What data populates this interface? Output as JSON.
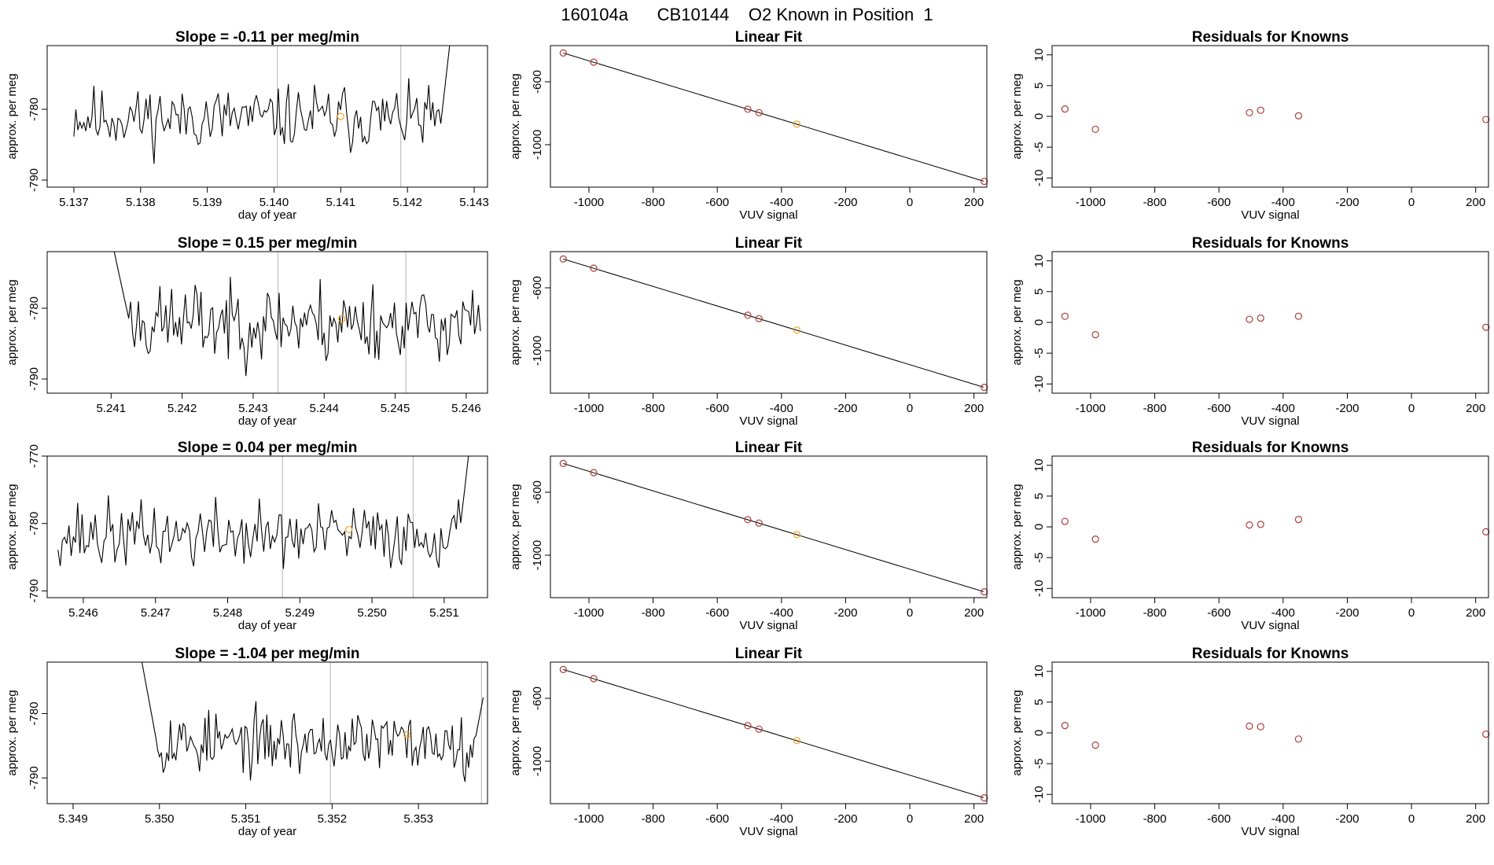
{
  "page": {
    "title": "160104a      CB10144    O2 Known in Position  1"
  },
  "colors": {
    "axis": "#000000",
    "trace": "#000000",
    "vline": "#bfbfbf",
    "fit_point": "#b03a3a",
    "unknown_point": "#f0a020",
    "fit_line": "#000000"
  },
  "chart_data": [
    {
      "type": "line",
      "row": 0,
      "title": "Slope =  -0.11  per meg/min",
      "xlabel": "day of year",
      "ylabel": "approx. per meg",
      "xlim": [
        5.1366,
        5.1432
      ],
      "ylim": [
        -791,
        -771
      ],
      "xticks": [
        5.137,
        5.138,
        5.139,
        5.14,
        5.141,
        5.142,
        5.143
      ],
      "xtick_labels": [
        "5.137",
        "5.138",
        "5.139",
        "5.140",
        "5.141",
        "5.142",
        "5.143"
      ],
      "yticks": [
        -780,
        -790
      ],
      "ytick_labels": [
        "-780",
        "-790"
      ],
      "trace_start": 5.137,
      "trace_end": 5.14268,
      "seed": 11,
      "mean": -781.2,
      "amp": 2.2,
      "tail": "up",
      "vlines": [
        5.14005,
        5.1419
      ],
      "marker": {
        "x": 5.141,
        "y": -781.0
      }
    },
    {
      "type": "line",
      "row": 1,
      "title": "Slope =  0.15  per meg/min",
      "xlabel": "day of year",
      "ylabel": "approx. per meg",
      "xlim": [
        5.2401,
        5.2463
      ],
      "ylim": [
        -792,
        -772
      ],
      "xticks": [
        5.241,
        5.242,
        5.243,
        5.244,
        5.245,
        5.246
      ],
      "xtick_labels": [
        "5.241",
        "5.242",
        "5.243",
        "5.244",
        "5.245",
        "5.246"
      ],
      "yticks": [
        -780,
        -790
      ],
      "ytick_labels": [
        "-780",
        "-790"
      ],
      "trace_start": 5.241,
      "trace_end": 5.2462,
      "seed": 23,
      "mean": -782.0,
      "amp": 2.8,
      "tail": "head-high",
      "vlines": [
        5.24335,
        5.24515
      ],
      "marker": {
        "x": 5.24425,
        "y": -781.5
      }
    },
    {
      "type": "line",
      "row": 2,
      "title": "Slope =  0.04  per meg/min",
      "xlabel": "day of year",
      "ylabel": "approx. per meg",
      "xlim": [
        5.2455,
        5.2516
      ],
      "ylim": [
        -791,
        -770
      ],
      "xticks": [
        5.246,
        5.247,
        5.248,
        5.249,
        5.25,
        5.251
      ],
      "xtick_labels": [
        "5.246",
        "5.247",
        "5.248",
        "5.249",
        "5.250",
        "5.251"
      ],
      "yticks": [
        -770,
        -780,
        -790
      ],
      "ytick_labels": [
        "-770",
        "-780",
        "-790"
      ],
      "trace_start": 5.24565,
      "trace_end": 5.25138,
      "seed": 37,
      "mean": -781.8,
      "amp": 2.4,
      "tail": "up",
      "vlines": [
        5.24876,
        5.25057
      ],
      "marker": {
        "x": 5.24968,
        "y": -780.9
      }
    },
    {
      "type": "line",
      "row": 3,
      "title": "Slope =  -1.04  per meg/min",
      "xlabel": "day of year",
      "ylabel": "approx. per meg",
      "xlim": [
        5.3487,
        5.3538
      ],
      "ylim": [
        -794,
        -772
      ],
      "xticks": [
        5.349,
        5.35,
        5.351,
        5.352,
        5.353
      ],
      "xtick_labels": [
        "5.349",
        "5.350",
        "5.351",
        "5.352",
        "5.353"
      ],
      "yticks": [
        -780,
        -790
      ],
      "ytick_labels": [
        "-780",
        "-790"
      ],
      "trace_start": 5.34977,
      "trace_end": 5.35375,
      "seed": 53,
      "mean": -784.5,
      "amp": 2.4,
      "tail": "head-high-end-up",
      "vlines": [
        5.35198,
        5.35373
      ],
      "marker": {
        "x": 5.35287,
        "y": -783.3
      }
    },
    {
      "type": "scatter",
      "row": 0,
      "title": "Linear Fit",
      "xlabel": "VUV signal",
      "ylabel": "approx. per meg",
      "xlim": [
        -1120,
        240
      ],
      "ylim": [
        -1270,
        -370
      ],
      "xticks": [
        -1000,
        -800,
        -600,
        -400,
        -200,
        0,
        200
      ],
      "xtick_labels": [
        "-1000",
        "-800",
        "-600",
        "-400",
        "-200",
        "0",
        "200"
      ],
      "yticks": [
        -600,
        -1000
      ],
      "ytick_labels": [
        "-600",
        "-1000"
      ],
      "fit_line": {
        "x": [
          -1080,
          230
        ],
        "y": [
          -417,
          -1232
        ]
      },
      "points": [
        {
          "x": -1080,
          "y": -417
        },
        {
          "x": -985,
          "y": -475
        },
        {
          "x": -505,
          "y": -774
        },
        {
          "x": -470,
          "y": -796
        },
        {
          "x": -352,
          "y": -869,
          "role": "unknown"
        },
        {
          "x": 232,
          "y": -1233
        }
      ]
    },
    {
      "type": "scatter",
      "row": 1,
      "title": "Linear Fit",
      "xlabel": "VUV signal",
      "ylabel": "approx. per meg",
      "xlim": [
        -1120,
        240
      ],
      "ylim": [
        -1270,
        -370
      ],
      "xticks": [
        -1000,
        -800,
        -600,
        -400,
        -200,
        0,
        200
      ],
      "xtick_labels": [
        "-1000",
        "-800",
        "-600",
        "-400",
        "-200",
        "0",
        "200"
      ],
      "yticks": [
        -600,
        -1000
      ],
      "ytick_labels": [
        "-600",
        "-1000"
      ],
      "fit_line": {
        "x": [
          -1080,
          230
        ],
        "y": [
          -417,
          -1232
        ]
      },
      "points": [
        {
          "x": -1080,
          "y": -417
        },
        {
          "x": -985,
          "y": -475
        },
        {
          "x": -505,
          "y": -774
        },
        {
          "x": -470,
          "y": -796
        },
        {
          "x": -352,
          "y": -869,
          "role": "unknown"
        },
        {
          "x": 232,
          "y": -1233
        }
      ]
    },
    {
      "type": "scatter",
      "row": 2,
      "title": "Linear Fit",
      "xlabel": "VUV signal",
      "ylabel": "approx. per meg",
      "xlim": [
        -1120,
        240
      ],
      "ylim": [
        -1270,
        -370
      ],
      "xticks": [
        -1000,
        -800,
        -600,
        -400,
        -200,
        0,
        200
      ],
      "xtick_labels": [
        "-1000",
        "-800",
        "-600",
        "-400",
        "-200",
        "0",
        "200"
      ],
      "yticks": [
        -600,
        -1000
      ],
      "ytick_labels": [
        "-600",
        "-1000"
      ],
      "fit_line": {
        "x": [
          -1080,
          230
        ],
        "y": [
          -417,
          -1232
        ]
      },
      "points": [
        {
          "x": -1080,
          "y": -417
        },
        {
          "x": -985,
          "y": -475
        },
        {
          "x": -505,
          "y": -774
        },
        {
          "x": -470,
          "y": -796
        },
        {
          "x": -352,
          "y": -869,
          "role": "unknown"
        },
        {
          "x": 232,
          "y": -1233
        }
      ]
    },
    {
      "type": "scatter",
      "row": 3,
      "title": "Linear Fit",
      "xlabel": "VUV signal",
      "ylabel": "approx. per meg",
      "xlim": [
        -1120,
        240
      ],
      "ylim": [
        -1270,
        -370
      ],
      "xticks": [
        -1000,
        -800,
        -600,
        -400,
        -200,
        0,
        200
      ],
      "xtick_labels": [
        "-1000",
        "-800",
        "-600",
        "-400",
        "-200",
        "0",
        "200"
      ],
      "yticks": [
        -600,
        -1000
      ],
      "ytick_labels": [
        "-600",
        "-1000"
      ],
      "fit_line": {
        "x": [
          -1080,
          230
        ],
        "y": [
          -417,
          -1232
        ]
      },
      "points": [
        {
          "x": -1080,
          "y": -417
        },
        {
          "x": -985,
          "y": -475
        },
        {
          "x": -505,
          "y": -774
        },
        {
          "x": -470,
          "y": -796
        },
        {
          "x": -352,
          "y": -869,
          "role": "unknown"
        },
        {
          "x": 232,
          "y": -1233
        }
      ]
    },
    {
      "type": "scatter",
      "row": 0,
      "title": "Residuals for Knowns",
      "xlabel": "VUV signal",
      "ylabel": "approx. per meg",
      "xlim": [
        -1120,
        240
      ],
      "ylim": [
        -11.5,
        11.5
      ],
      "xticks": [
        -1000,
        -800,
        -600,
        -400,
        -200,
        0,
        200
      ],
      "xtick_labels": [
        "-1000",
        "-800",
        "-600",
        "-400",
        "-200",
        "0",
        "200"
      ],
      "yticks": [
        10,
        5,
        0,
        -5,
        -10
      ],
      "ytick_labels": [
        "10",
        "5",
        "0",
        "-5",
        "-10"
      ],
      "points": [
        {
          "x": -1080,
          "y": 1.2
        },
        {
          "x": -985,
          "y": -2.1
        },
        {
          "x": -505,
          "y": 0.6
        },
        {
          "x": -470,
          "y": 1.0
        },
        {
          "x": -352,
          "y": 0.1
        },
        {
          "x": 232,
          "y": -0.5
        }
      ]
    },
    {
      "type": "scatter",
      "row": 1,
      "title": "Residuals for Knowns",
      "xlabel": "VUV signal",
      "ylabel": "approx. per meg",
      "xlim": [
        -1120,
        240
      ],
      "ylim": [
        -11.5,
        11.5
      ],
      "xticks": [
        -1000,
        -800,
        -600,
        -400,
        -200,
        0,
        200
      ],
      "xtick_labels": [
        "-1000",
        "-800",
        "-600",
        "-400",
        "-200",
        "0",
        "200"
      ],
      "yticks": [
        10,
        5,
        0,
        -5,
        -10
      ],
      "ytick_labels": [
        "10",
        "5",
        "0",
        "-5",
        "-10"
      ],
      "points": [
        {
          "x": -1080,
          "y": 1.0
        },
        {
          "x": -985,
          "y": -2.0
        },
        {
          "x": -505,
          "y": 0.5
        },
        {
          "x": -470,
          "y": 0.7
        },
        {
          "x": -352,
          "y": 1.0
        },
        {
          "x": 232,
          "y": -0.8
        }
      ]
    },
    {
      "type": "scatter",
      "row": 2,
      "title": "Residuals for Knowns",
      "xlabel": "VUV signal",
      "ylabel": "approx. per meg",
      "xlim": [
        -1120,
        240
      ],
      "ylim": [
        -11.5,
        11.5
      ],
      "xticks": [
        -1000,
        -800,
        -600,
        -400,
        -200,
        0,
        200
      ],
      "xtick_labels": [
        "-1000",
        "-800",
        "-600",
        "-400",
        "-200",
        "0",
        "200"
      ],
      "yticks": [
        10,
        5,
        0,
        -5,
        -10
      ],
      "ytick_labels": [
        "10",
        "5",
        "0",
        "-5",
        "-10"
      ],
      "points": [
        {
          "x": -1080,
          "y": 0.9
        },
        {
          "x": -985,
          "y": -2.0
        },
        {
          "x": -505,
          "y": 0.3
        },
        {
          "x": -470,
          "y": 0.4
        },
        {
          "x": -352,
          "y": 1.2
        },
        {
          "x": 232,
          "y": -0.8
        }
      ]
    },
    {
      "type": "scatter",
      "row": 3,
      "title": "Residuals for Knowns",
      "xlabel": "VUV signal",
      "ylabel": "approx. per meg",
      "xlim": [
        -1120,
        240
      ],
      "ylim": [
        -11.5,
        11.5
      ],
      "xticks": [
        -1000,
        -800,
        -600,
        -400,
        -200,
        0,
        200
      ],
      "xtick_labels": [
        "-1000",
        "-800",
        "-600",
        "-400",
        "-200",
        "0",
        "200"
      ],
      "yticks": [
        10,
        5,
        0,
        -5,
        -10
      ],
      "ytick_labels": [
        "10",
        "5",
        "0",
        "-5",
        "-10"
      ],
      "points": [
        {
          "x": -1080,
          "y": 1.2
        },
        {
          "x": -985,
          "y": -2.0
        },
        {
          "x": -505,
          "y": 1.1
        },
        {
          "x": -470,
          "y": 1.0
        },
        {
          "x": -352,
          "y": -1.0
        },
        {
          "x": 232,
          "y": -0.2
        }
      ]
    }
  ]
}
